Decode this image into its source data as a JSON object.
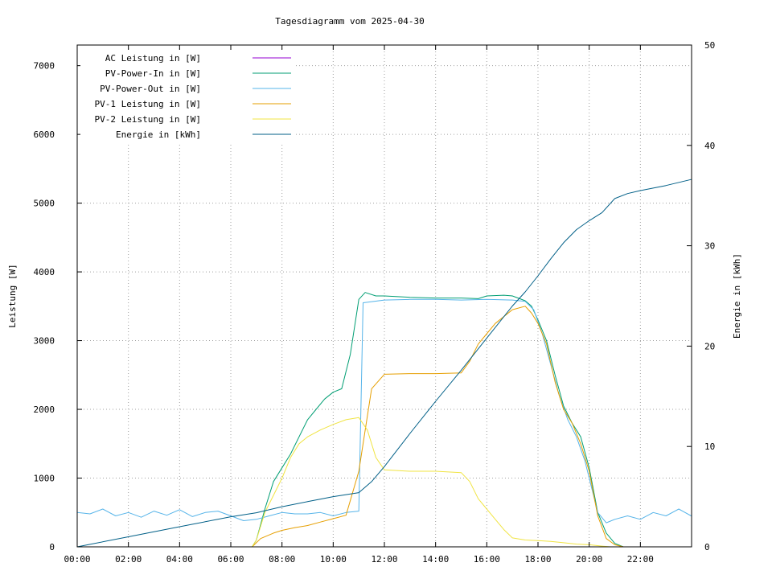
{
  "chart_data": {
    "type": "line",
    "title": "Tagesdiagramm vom 2025-04-30",
    "xlabel": "",
    "ylabel": "Leistung [W]",
    "y2label": "Energie in [kWh]",
    "xlim": [
      "00:00",
      "24:00"
    ],
    "ylim": [
      0,
      7300
    ],
    "y2lim": [
      0,
      50
    ],
    "x_ticks": [
      "00:00",
      "02:00",
      "04:00",
      "06:00",
      "08:00",
      "10:00",
      "12:00",
      "14:00",
      "16:00",
      "18:00",
      "20:00",
      "22:00"
    ],
    "y_ticks": [
      0,
      1000,
      2000,
      3000,
      4000,
      5000,
      6000,
      7000
    ],
    "y2_ticks": [
      0,
      10,
      20,
      30,
      40,
      50
    ],
    "grid": true,
    "legend_position": "top-left",
    "series": [
      {
        "name": "AC Leistung in [W]",
        "color": "#9400d3",
        "axis": "left",
        "points": []
      },
      {
        "name": "PV-Power-In in [W]",
        "color": "#009e73",
        "axis": "left",
        "points": [
          [
            "06:50",
            0
          ],
          [
            "07:00",
            100
          ],
          [
            "07:20",
            550
          ],
          [
            "07:40",
            950
          ],
          [
            "08:00",
            1150
          ],
          [
            "08:20",
            1350
          ],
          [
            "08:40",
            1600
          ],
          [
            "09:00",
            1850
          ],
          [
            "09:20",
            2000
          ],
          [
            "09:40",
            2150
          ],
          [
            "10:00",
            2250
          ],
          [
            "10:20",
            2300
          ],
          [
            "10:40",
            2800
          ],
          [
            "11:00",
            3600
          ],
          [
            "11:15",
            3700
          ],
          [
            "11:40",
            3650
          ],
          [
            "12:00",
            3650
          ],
          [
            "13:00",
            3630
          ],
          [
            "14:00",
            3620
          ],
          [
            "15:00",
            3620
          ],
          [
            "15:40",
            3610
          ],
          [
            "16:00",
            3650
          ],
          [
            "16:40",
            3660
          ],
          [
            "17:00",
            3650
          ],
          [
            "17:30",
            3580
          ],
          [
            "17:45",
            3500
          ],
          [
            "18:00",
            3300
          ],
          [
            "18:20",
            3000
          ],
          [
            "18:40",
            2500
          ],
          [
            "19:00",
            2050
          ],
          [
            "19:20",
            1800
          ],
          [
            "19:40",
            1600
          ],
          [
            "20:00",
            1150
          ],
          [
            "20:20",
            500
          ],
          [
            "20:40",
            200
          ],
          [
            "21:00",
            50
          ],
          [
            "21:20",
            0
          ]
        ]
      },
      {
        "name": "PV-Power-Out in [W]",
        "color": "#56b4e9",
        "axis": "left",
        "points": [
          [
            "00:00",
            500
          ],
          [
            "00:30",
            480
          ],
          [
            "01:00",
            550
          ],
          [
            "01:30",
            450
          ],
          [
            "02:00",
            500
          ],
          [
            "02:30",
            430
          ],
          [
            "03:00",
            520
          ],
          [
            "03:30",
            460
          ],
          [
            "04:00",
            540
          ],
          [
            "04:30",
            440
          ],
          [
            "05:00",
            500
          ],
          [
            "05:30",
            520
          ],
          [
            "06:00",
            450
          ],
          [
            "06:30",
            380
          ],
          [
            "07:00",
            400
          ],
          [
            "07:30",
            450
          ],
          [
            "08:00",
            500
          ],
          [
            "08:30",
            480
          ],
          [
            "09:00",
            480
          ],
          [
            "09:30",
            500
          ],
          [
            "10:00",
            450
          ],
          [
            "10:30",
            500
          ],
          [
            "11:00",
            520
          ],
          [
            "11:10",
            3550
          ],
          [
            "12:00",
            3590
          ],
          [
            "13:00",
            3600
          ],
          [
            "14:00",
            3600
          ],
          [
            "15:00",
            3590
          ],
          [
            "16:00",
            3600
          ],
          [
            "17:00",
            3590
          ],
          [
            "17:30",
            3570
          ],
          [
            "17:50",
            3450
          ],
          [
            "18:10",
            3100
          ],
          [
            "18:30",
            2650
          ],
          [
            "18:50",
            2200
          ],
          [
            "19:10",
            1850
          ],
          [
            "19:30",
            1600
          ],
          [
            "19:50",
            1250
          ],
          [
            "20:10",
            750
          ],
          [
            "20:20",
            500
          ],
          [
            "20:40",
            350
          ],
          [
            "21:00",
            400
          ],
          [
            "21:30",
            450
          ],
          [
            "22:00",
            400
          ],
          [
            "22:30",
            500
          ],
          [
            "23:00",
            450
          ],
          [
            "23:30",
            550
          ],
          [
            "23:59",
            450
          ]
        ]
      },
      {
        "name": "PV-1 Leistung in [W]",
        "color": "#e69f00",
        "axis": "left",
        "points": [
          [
            "06:50",
            0
          ],
          [
            "07:10",
            120
          ],
          [
            "07:40",
            200
          ],
          [
            "08:00",
            240
          ],
          [
            "08:30",
            280
          ],
          [
            "09:00",
            310
          ],
          [
            "09:30",
            360
          ],
          [
            "10:00",
            410
          ],
          [
            "10:30",
            460
          ],
          [
            "11:00",
            1100
          ],
          [
            "11:30",
            2300
          ],
          [
            "12:00",
            2510
          ],
          [
            "13:00",
            2520
          ],
          [
            "14:00",
            2520
          ],
          [
            "15:00",
            2530
          ],
          [
            "15:20",
            2700
          ],
          [
            "15:40",
            2950
          ],
          [
            "16:00",
            3100
          ],
          [
            "16:20",
            3250
          ],
          [
            "16:40",
            3350
          ],
          [
            "17:00",
            3450
          ],
          [
            "17:30",
            3500
          ],
          [
            "17:45",
            3400
          ],
          [
            "18:00",
            3250
          ],
          [
            "18:20",
            2950
          ],
          [
            "18:40",
            2400
          ],
          [
            "19:00",
            2000
          ],
          [
            "19:20",
            1800
          ],
          [
            "19:40",
            1500
          ],
          [
            "20:00",
            1100
          ],
          [
            "20:20",
            450
          ],
          [
            "20:40",
            120
          ],
          [
            "21:00",
            30
          ],
          [
            "21:20",
            0
          ]
        ]
      },
      {
        "name": "PV-2 Leistung in [W]",
        "color": "#f0e442",
        "axis": "left",
        "points": [
          [
            "06:50",
            0
          ],
          [
            "07:00",
            100
          ],
          [
            "07:20",
            500
          ],
          [
            "07:40",
            750
          ],
          [
            "08:00",
            1000
          ],
          [
            "08:20",
            1300
          ],
          [
            "08:40",
            1500
          ],
          [
            "09:00",
            1600
          ],
          [
            "09:30",
            1700
          ],
          [
            "10:00",
            1780
          ],
          [
            "10:30",
            1850
          ],
          [
            "11:00",
            1880
          ],
          [
            "11:20",
            1700
          ],
          [
            "11:40",
            1300
          ],
          [
            "12:00",
            1120
          ],
          [
            "13:00",
            1100
          ],
          [
            "14:00",
            1100
          ],
          [
            "15:00",
            1080
          ],
          [
            "15:20",
            950
          ],
          [
            "15:40",
            700
          ],
          [
            "16:00",
            550
          ],
          [
            "16:20",
            400
          ],
          [
            "16:40",
            250
          ],
          [
            "17:00",
            130
          ],
          [
            "17:30",
            100
          ],
          [
            "18:00",
            90
          ],
          [
            "18:30",
            80
          ],
          [
            "19:00",
            60
          ],
          [
            "19:30",
            40
          ],
          [
            "20:00",
            30
          ],
          [
            "20:30",
            10
          ],
          [
            "20:50",
            0
          ]
        ]
      },
      {
        "name": "Energie in [kWh]",
        "color": "#005f87",
        "axis": "right",
        "points": [
          [
            "00:00",
            0
          ],
          [
            "02:00",
            1
          ],
          [
            "04:00",
            2
          ],
          [
            "06:00",
            3
          ],
          [
            "07:00",
            3.4
          ],
          [
            "08:00",
            4
          ],
          [
            "09:00",
            4.5
          ],
          [
            "10:00",
            5
          ],
          [
            "11:00",
            5.4
          ],
          [
            "11:30",
            6.5
          ],
          [
            "12:00",
            8
          ],
          [
            "13:00",
            11.3
          ],
          [
            "14:00",
            14.5
          ],
          [
            "15:00",
            17.6
          ],
          [
            "16:00",
            20.8
          ],
          [
            "17:00",
            24
          ],
          [
            "17:30",
            25.4
          ],
          [
            "18:00",
            27
          ],
          [
            "18:30",
            28.7
          ],
          [
            "19:00",
            30.3
          ],
          [
            "19:30",
            31.6
          ],
          [
            "20:00",
            32.5
          ],
          [
            "20:30",
            33.3
          ],
          [
            "21:00",
            34.7
          ],
          [
            "21:30",
            35.2
          ],
          [
            "22:00",
            35.5
          ],
          [
            "23:00",
            36
          ],
          [
            "23:59",
            36.6
          ]
        ]
      }
    ]
  }
}
